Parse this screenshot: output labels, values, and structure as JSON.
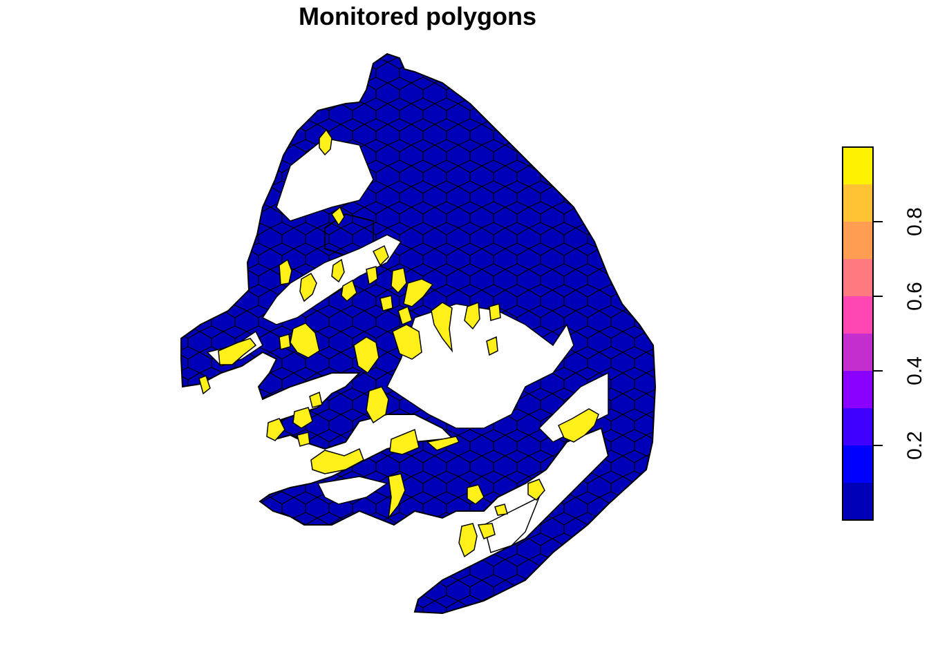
{
  "title": "Monitored polygons",
  "colors": {
    "low": "#0000B8",
    "high": "#FFF01A",
    "outline": "#000000",
    "background": "#FFFFFF"
  },
  "legend": {
    "palette": [
      "#0000B8",
      "#0000FF",
      "#4000FF",
      "#8A00FF",
      "#C42ECF",
      "#FF47B3",
      "#FF7A80",
      "#FF9E52",
      "#FFC333",
      "#FFF200"
    ],
    "breaks": [
      0.0,
      0.1,
      0.2,
      0.3,
      0.4,
      0.5,
      0.6,
      0.7,
      0.8,
      0.9,
      1.0
    ],
    "ticks": [
      {
        "value": 0.2,
        "label": "0.2"
      },
      {
        "value": 0.4,
        "label": "0.4"
      },
      {
        "value": 0.6,
        "label": "0.6"
      },
      {
        "value": 0.8,
        "label": "0.8"
      }
    ]
  },
  "map_description_values": {
    "monitored_value": 1,
    "unmonitored_value": 0
  }
}
